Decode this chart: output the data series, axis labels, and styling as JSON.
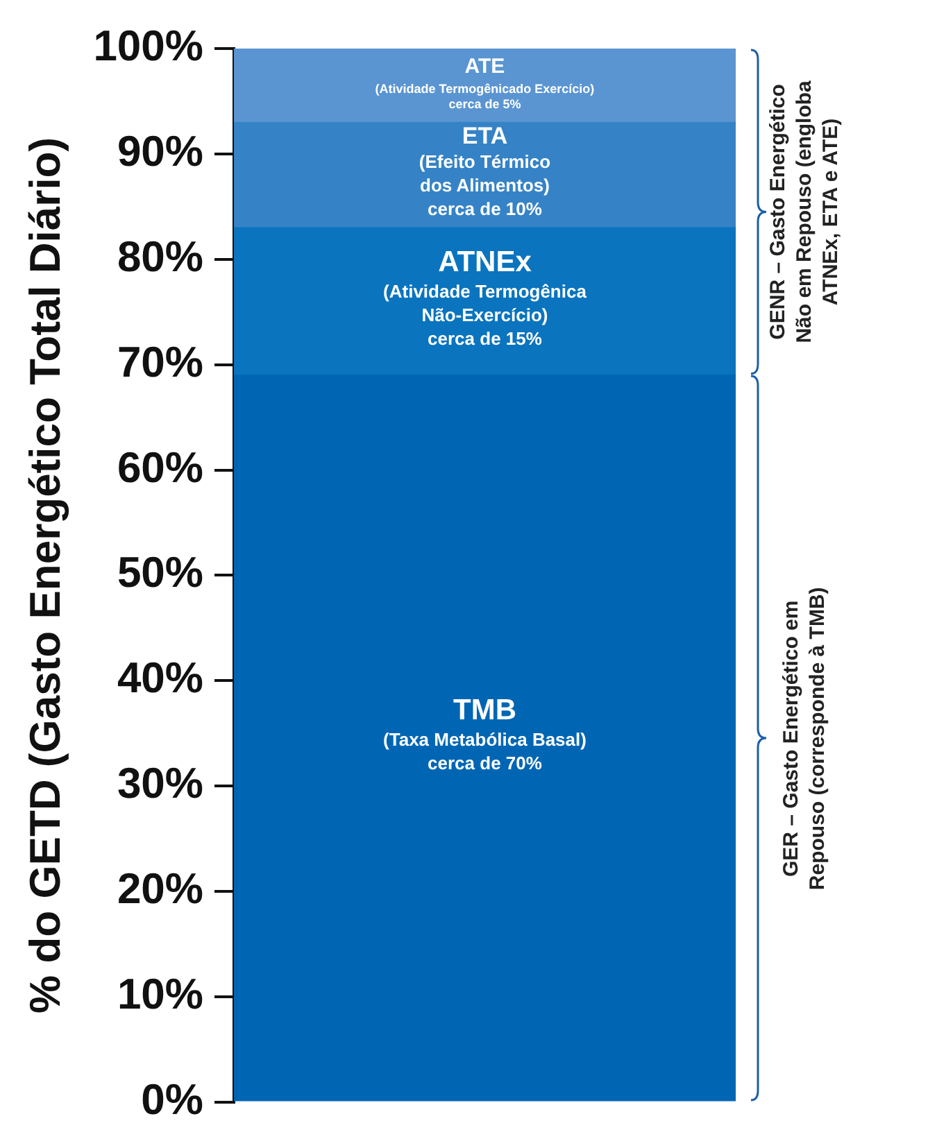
{
  "chart_data": {
    "type": "bar",
    "stacked": true,
    "ylabel": "% do GETD (Gasto Energético Total Diário)",
    "categories": [
      null
    ],
    "series": [
      {
        "name": "TMB\n(Taxa Metabólica Basal)\ncerca de 70%",
        "color": "#0066b3",
        "values": [
          69
        ]
      },
      {
        "name": "ATNEx\n(Atividade Termogênica\nNão-Exercício)\ncerca de 15%",
        "color": "#0a74be",
        "values": [
          14
        ]
      },
      {
        "name": "ETA\n(Efeito Térmico\ndos Alimentos)\ncerca de 10%",
        "color": "#3583c6",
        "values": [
          10
        ]
      },
      {
        "name": "ATE\n(Atividade Termogênicado Exercício)\ncerca de 5%",
        "color": "#5a95d2",
        "values": [
          7
        ]
      }
    ],
    "ylim": [
      0,
      100
    ],
    "yticks": [
      {
        "value": 0,
        "label": "0%"
      },
      {
        "value": 10,
        "label": "10%"
      },
      {
        "value": 20,
        "label": "20%"
      },
      {
        "value": 30,
        "label": "30%"
      },
      {
        "value": 40,
        "label": "40%"
      },
      {
        "value": 50,
        "label": "50%"
      },
      {
        "value": 60,
        "label": "60%"
      },
      {
        "value": 70,
        "label": "70%"
      },
      {
        "value": 80,
        "label": "80%"
      },
      {
        "value": 90,
        "label": "90%"
      },
      {
        "value": 100,
        "label": "100%"
      }
    ],
    "grid": false,
    "legend": false,
    "annotations": [
      "GENR – Gasto Energético\nNão em Repouso (engloba\nATNEx, ETA e ATE)",
      "GER – Gasto Energético em\nRepouso (corresponde à TMB)"
    ]
  }
}
